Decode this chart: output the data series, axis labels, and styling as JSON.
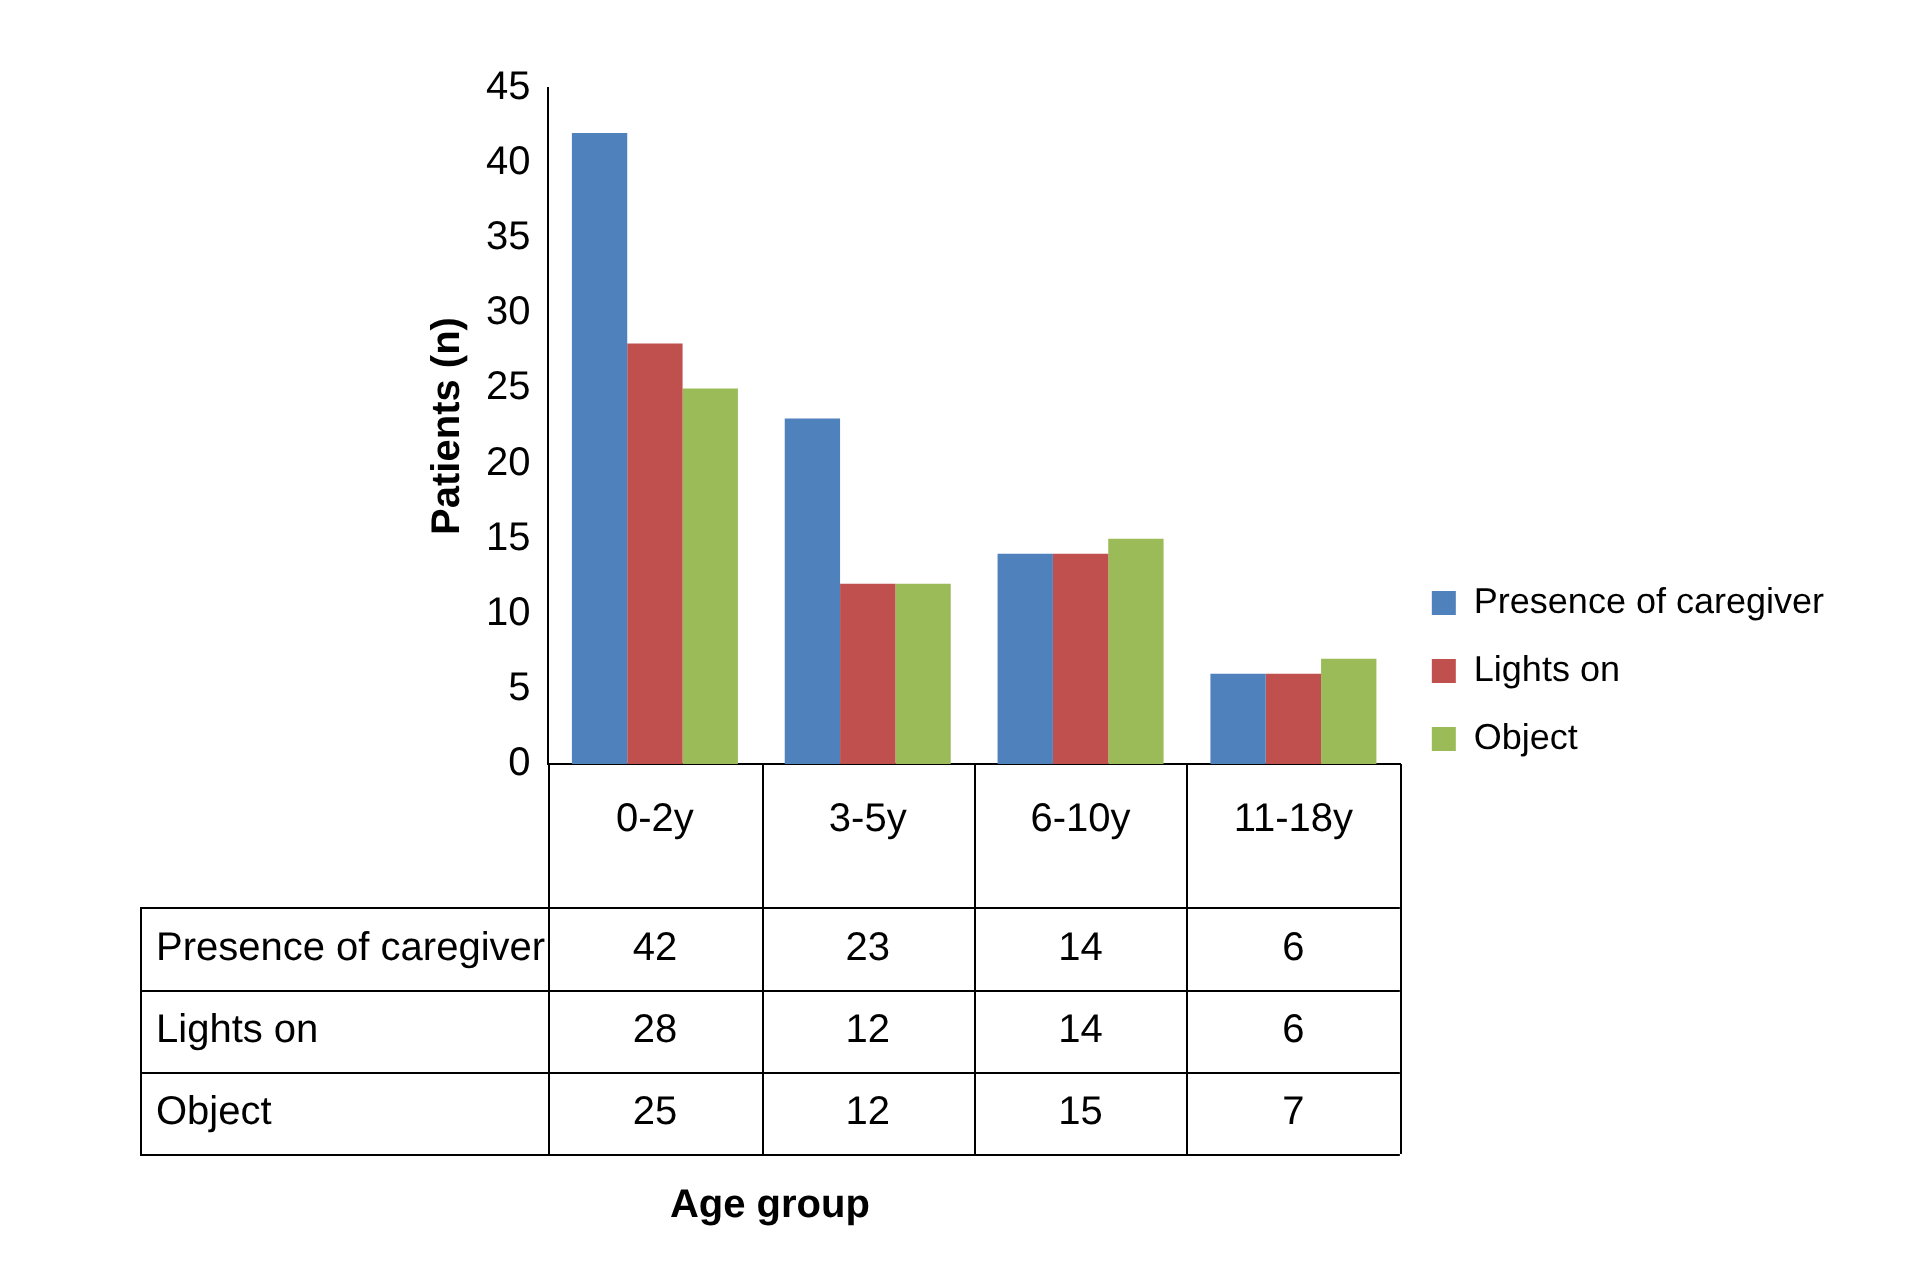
{
  "chart_data": {
    "type": "bar",
    "annotations": [
      "Age group"
    ],
    "ylabel": "Patients (n)",
    "categories": [
      "0-2y",
      "3-5y",
      "6-10y",
      "11-18y"
    ],
    "series": [
      {
        "name": "Presence of caregiver",
        "color": "#4f81bd",
        "values": [
          42,
          23,
          14,
          6
        ]
      },
      {
        "name": "Lights on",
        "color": "#c0504d",
        "values": [
          28,
          12,
          14,
          6
        ]
      },
      {
        "name": "Object",
        "color": "#9bbb59",
        "values": [
          25,
          12,
          15,
          7
        ]
      }
    ],
    "ylim": [
      0,
      45
    ],
    "yticks": [
      0,
      5,
      10,
      15,
      20,
      25,
      30,
      35,
      40,
      45
    ],
    "grid": false,
    "legend": "right",
    "data_labels": true
  }
}
